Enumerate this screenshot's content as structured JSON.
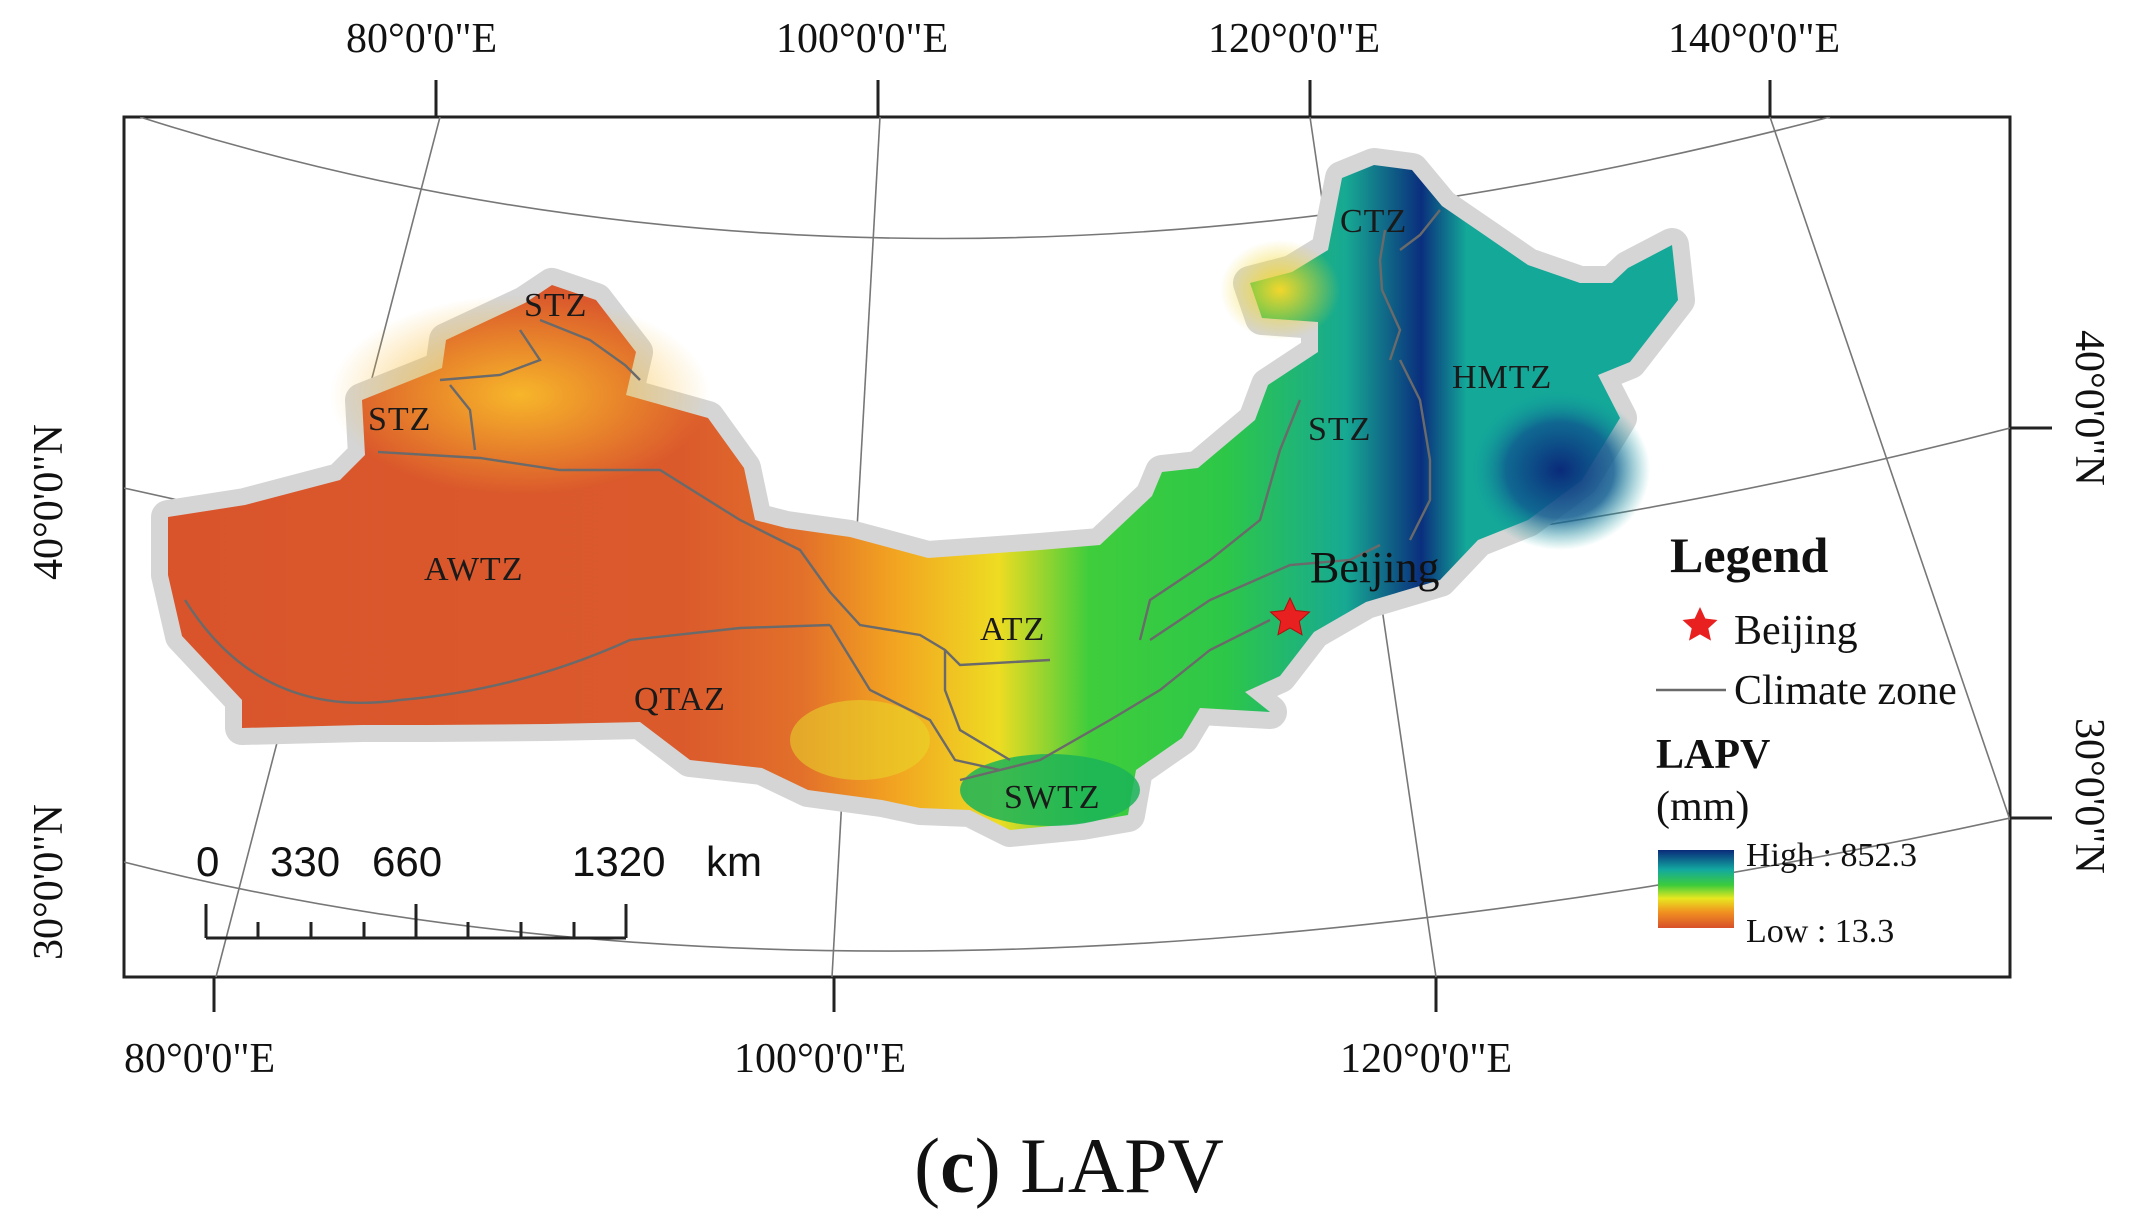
{
  "caption": {
    "letter": "c",
    "title": "LAPV"
  },
  "axes": {
    "top_lon": [
      "80°0'0\"E",
      "100°0'0\"E",
      "120°0'0\"E",
      "140°0'0\"E"
    ],
    "bottom_lon": [
      "80°0'0\"E",
      "100°0'0\"E",
      "120°0'0\"E"
    ],
    "left_lat": [
      "40°0'0\"N",
      "30°0'0\"N"
    ],
    "right_lat": [
      "40°0'0\"N",
      "30°0'0\"N"
    ]
  },
  "zones": [
    "CTZ",
    "STZ",
    "STZ",
    "HMTZ",
    "STZ",
    "AWTZ",
    "ATZ",
    "QTAZ",
    "SWTZ"
  ],
  "city": {
    "name": "Beijing"
  },
  "legend": {
    "title": "Legend",
    "beijing": "Beijing",
    "climate_zone": "Climate zone",
    "variable": "LAPV",
    "unit": "(mm)",
    "high": "High : 852.3",
    "low": "Low : 13.3",
    "colors": {
      "high": "#0a2a7a",
      "mid_high": "#12a8a0",
      "mid": "#3ccc3c",
      "mid_low": "#e8e820",
      "low": "#f09020",
      "lowest": "#d8502a"
    }
  },
  "scalebar": {
    "labels": [
      "0",
      "330",
      "660",
      "1320"
    ],
    "unit": "km"
  }
}
